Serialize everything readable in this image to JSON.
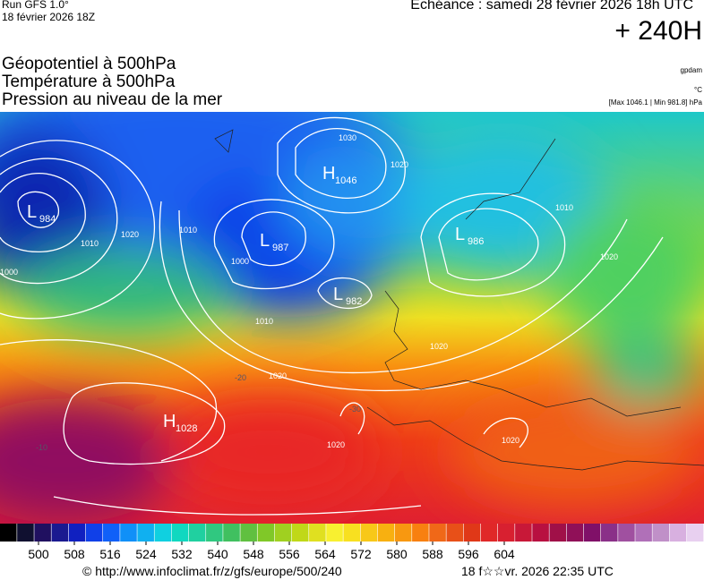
{
  "header": {
    "run": "Run GFS 1.0°",
    "run_date": "18 février 2026 18Z",
    "valid": "Echéance : samedi 28 février 2026 18h UTC",
    "lead": "+ 240H"
  },
  "legend": {
    "line1": "Géopotentiel à 500hPa",
    "line2": "Température à 500hPa",
    "line3": "Pression au niveau de la mer",
    "unit1": "gpdam",
    "unit2": "°C",
    "range": "[Max 1046.1 | Min 981.8] hPa"
  },
  "centers": [
    {
      "letter": "L",
      "value": "984"
    },
    {
      "letter": "L",
      "value": "987"
    },
    {
      "letter": "H",
      "value": "1046"
    },
    {
      "letter": "L",
      "value": "986"
    },
    {
      "letter": "L",
      "value": "982"
    },
    {
      "letter": "H",
      "value": "1028"
    }
  ],
  "isobar_labels": [
    "1030",
    "1020",
    "1010",
    "1000",
    "1020",
    "1010",
    "1020",
    "1010",
    "1020",
    "1020",
    "1020",
    "1020",
    "1000",
    "1010"
  ],
  "temp_labels": [
    "-20",
    "-30",
    "-10"
  ],
  "colorbar": {
    "ticks": [
      500,
      508,
      516,
      524,
      532,
      540,
      548,
      556,
      564,
      572,
      580,
      588,
      596,
      604
    ]
  },
  "footer": {
    "url": "© http://www.infoclimat.fr/z/gfs/europe/500/240",
    "stamp": "18 f☆☆vr. 2026 22:35 UTC"
  }
}
